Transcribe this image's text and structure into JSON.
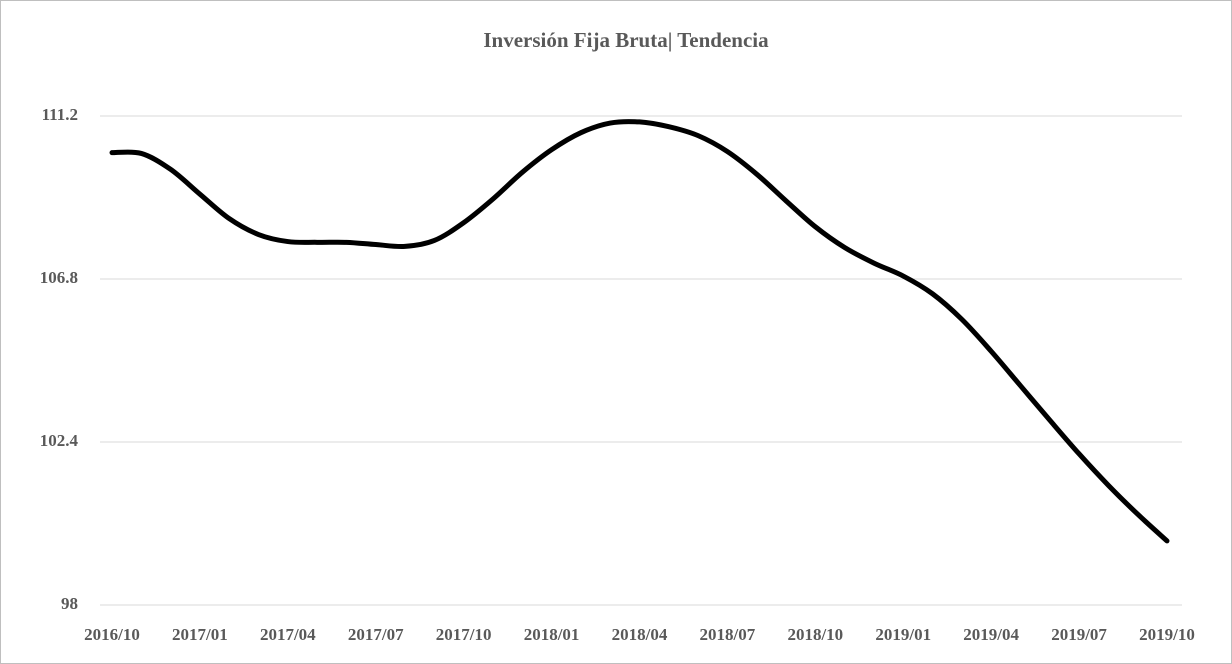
{
  "chart_data": {
    "type": "line",
    "title": "Inversión Fija Bruta|  Tendencia",
    "categories": [
      "2016/10",
      null,
      null,
      "2017/01",
      null,
      null,
      "2017/04",
      null,
      null,
      "2017/07",
      null,
      null,
      "2017/10",
      null,
      null,
      "2018/01",
      null,
      null,
      "2018/04",
      null,
      null,
      "2018/07",
      null,
      null,
      "2018/10",
      null,
      null,
      "2019/01",
      null,
      null,
      "2019/04",
      null,
      null,
      "2019/07",
      null,
      null,
      "2019/10"
    ],
    "series": [
      {
        "name": "Tendencia",
        "color": "#000000",
        "values": [
          110.21,
          110.19,
          109.76,
          109.09,
          108.43,
          108.0,
          107.81,
          107.79,
          107.79,
          107.73,
          107.68,
          107.84,
          108.32,
          108.96,
          109.68,
          110.29,
          110.75,
          111.01,
          111.04,
          110.91,
          110.67,
          110.24,
          109.63,
          108.91,
          108.21,
          107.65,
          107.23,
          106.88,
          106.4,
          105.71,
          104.85,
          103.92,
          102.99,
          102.08,
          101.23,
          100.45,
          99.73
        ]
      }
    ],
    "ylim": [
      98,
      111.2
    ],
    "yticks": [
      98,
      102.4,
      106.8,
      111.2
    ],
    "grid": true,
    "smooth": true
  }
}
